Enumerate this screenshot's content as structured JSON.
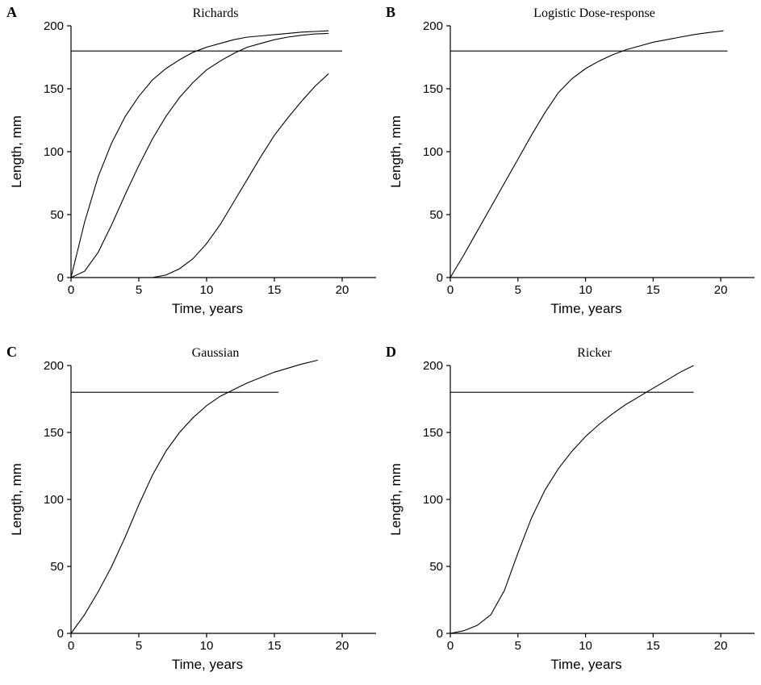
{
  "chart_data": [
    {
      "type": "line",
      "panel": "A",
      "title": "Richards",
      "xlabel": "Time, years",
      "ylabel": "Length, mm",
      "xlim": [
        0,
        22.5
      ],
      "ylim": [
        0,
        200
      ],
      "xticks": [
        "0",
        "5",
        "10",
        "15",
        "20"
      ],
      "yticks": [
        "0",
        "50",
        "100",
        "150",
        "200"
      ],
      "series": [
        {
          "x": [
            0,
            1,
            2,
            3,
            4,
            5,
            6,
            7,
            8,
            9,
            10,
            11,
            12,
            13,
            14,
            15,
            16,
            17,
            18,
            19
          ],
          "values": [
            0,
            44,
            80,
            107,
            128,
            144,
            157,
            166,
            173,
            179,
            183,
            186,
            189,
            191,
            192,
            193,
            194,
            195,
            195.5,
            196
          ]
        },
        {
          "x": [
            0,
            1,
            2,
            3,
            4,
            5,
            6,
            7,
            8,
            9,
            10,
            11,
            12,
            13,
            14,
            15,
            16,
            17,
            18,
            19
          ],
          "values": [
            0,
            5,
            20,
            42,
            66,
            89,
            110,
            128,
            143,
            155,
            165,
            172,
            178,
            183,
            186,
            189,
            191,
            192.5,
            193.5,
            194
          ]
        },
        {
          "x": [
            0,
            4,
            5,
            6,
            7,
            8,
            9,
            10,
            11,
            12,
            13,
            14,
            15,
            16,
            17,
            18,
            19
          ],
          "values": [
            0,
            0,
            0,
            0,
            2,
            7,
            15,
            27,
            42,
            60,
            78,
            96,
            113,
            127,
            140,
            152,
            162
          ]
        }
      ],
      "reference_line": {
        "y": 180,
        "x": [
          0,
          20
        ]
      }
    },
    {
      "type": "line",
      "panel": "B",
      "title": "Logistic Dose-response",
      "xlabel": "Time, years",
      "ylabel": "Length, mm",
      "xlim": [
        0,
        22.5
      ],
      "ylim": [
        0,
        200
      ],
      "xticks": [
        "0",
        "5",
        "10",
        "15",
        "20"
      ],
      "yticks": [
        "0",
        "50",
        "100",
        "150",
        "200"
      ],
      "series": [
        {
          "x": [
            0,
            1,
            2,
            3,
            4,
            5,
            6,
            7,
            8,
            9,
            10,
            11,
            12,
            13,
            14,
            15,
            16,
            17,
            18,
            19,
            20.2
          ],
          "values": [
            0,
            18,
            37,
            56,
            75,
            94,
            113,
            131,
            147,
            158,
            166,
            172,
            177,
            181,
            184,
            187,
            189,
            191,
            193,
            194.5,
            196
          ]
        }
      ],
      "reference_line": {
        "y": 180,
        "x": [
          0,
          20.5
        ]
      }
    },
    {
      "type": "line",
      "panel": "C",
      "title": "Gaussian",
      "xlabel": "Time, years",
      "ylabel": "Length, mm",
      "xlim": [
        0,
        22.5
      ],
      "ylim": [
        0,
        200
      ],
      "xticks": [
        "0",
        "5",
        "10",
        "15",
        "20"
      ],
      "yticks": [
        "0",
        "50",
        "100",
        "150",
        "200"
      ],
      "series": [
        {
          "x": [
            0,
            1,
            2,
            3,
            4,
            5,
            6,
            7,
            8,
            9,
            10,
            11,
            12,
            13,
            14,
            15,
            16,
            17,
            18.2
          ],
          "values": [
            0,
            14,
            31,
            50,
            72,
            96,
            118,
            136,
            150,
            161,
            170,
            177,
            182,
            187,
            191,
            195,
            198,
            201,
            204
          ]
        }
      ],
      "reference_line": {
        "y": 180,
        "x": [
          0,
          15.3
        ]
      }
    },
    {
      "type": "line",
      "panel": "D",
      "title": "Ricker",
      "xlabel": "Time, years",
      "ylabel": "Length, mm",
      "xlim": [
        0,
        22.5
      ],
      "ylim": [
        0,
        200
      ],
      "xticks": [
        "0",
        "5",
        "10",
        "15",
        "20"
      ],
      "yticks": [
        "0",
        "50",
        "100",
        "150",
        "200"
      ],
      "series": [
        {
          "x": [
            0,
            1,
            2,
            3,
            4,
            5,
            6,
            7,
            8,
            9,
            10,
            11,
            12,
            13,
            14,
            15,
            16,
            17,
            18
          ],
          "values": [
            0,
            2,
            6,
            14,
            32,
            60,
            86,
            107,
            123,
            136,
            147,
            156,
            164,
            171,
            177,
            183,
            189,
            195,
            200
          ]
        }
      ],
      "reference_line": {
        "y": 180,
        "x": [
          0,
          18
        ]
      }
    }
  ]
}
